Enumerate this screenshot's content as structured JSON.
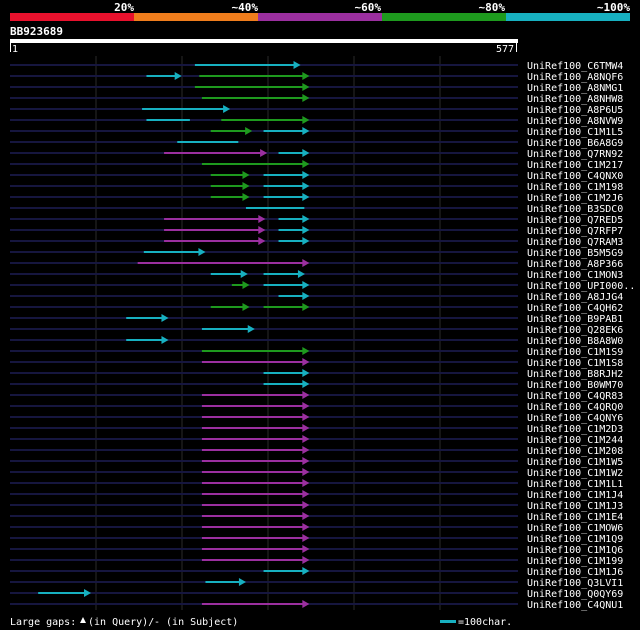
{
  "header": {
    "scale_labels": [
      "20%",
      "~40%",
      "~60%",
      "~80%",
      "~100%"
    ],
    "scale_colors": [
      "#e8112d",
      "#ef7d1c",
      "#9b2f9f",
      "#1e9a1e",
      "#17b0c0"
    ],
    "query_id": "BB923689",
    "query_start": "1",
    "query_end": "577"
  },
  "hits": [
    {
      "id": "UniRef100_C6TMW4",
      "segs": [
        {
          "s": 210,
          "e": 330,
          "c": 4,
          "a": 1
        }
      ]
    },
    {
      "id": "UniRef100_A8NQF6",
      "segs": [
        {
          "s": 155,
          "e": 195,
          "c": 4,
          "a": 1
        },
        {
          "s": 215,
          "e": 340,
          "c": 3,
          "a": 1
        }
      ]
    },
    {
      "id": "UniRef100_A8NMG1",
      "segs": [
        {
          "s": 210,
          "e": 340,
          "c": 3,
          "a": 1
        }
      ]
    },
    {
      "id": "UniRef100_A8NHW8",
      "segs": [
        {
          "s": 218,
          "e": 340,
          "c": 3,
          "a": 1
        }
      ]
    },
    {
      "id": "UniRef100_A8P6U5",
      "segs": [
        {
          "s": 150,
          "e": 250,
          "c": 4,
          "a": 1
        }
      ]
    },
    {
      "id": "UniRef100_A8NVW9",
      "segs": [
        {
          "s": 155,
          "e": 210,
          "c": 4,
          "a": 0
        },
        {
          "s": 240,
          "e": 340,
          "c": 3,
          "a": 1
        }
      ]
    },
    {
      "id": "UniRef100_C1M1L5",
      "segs": [
        {
          "s": 228,
          "e": 275,
          "c": 3,
          "a": 1
        },
        {
          "s": 288,
          "e": 340,
          "c": 4,
          "a": 1
        }
      ]
    },
    {
      "id": "UniRef100_B6A8G9",
      "segs": [
        {
          "s": 190,
          "e": 265,
          "c": 4,
          "a": 0
        }
      ]
    },
    {
      "id": "UniRef100_Q7RN92",
      "segs": [
        {
          "s": 175,
          "e": 292,
          "c": 2,
          "a": 1
        },
        {
          "s": 305,
          "e": 340,
          "c": 4,
          "a": 1
        }
      ]
    },
    {
      "id": "UniRef100_C1M217",
      "segs": [
        {
          "s": 218,
          "e": 340,
          "c": 3,
          "a": 1
        }
      ]
    },
    {
      "id": "UniRef100_C4QNX0",
      "segs": [
        {
          "s": 228,
          "e": 272,
          "c": 3,
          "a": 1
        },
        {
          "s": 288,
          "e": 340,
          "c": 4,
          "a": 1
        }
      ]
    },
    {
      "id": "UniRef100_C1M198",
      "segs": [
        {
          "s": 228,
          "e": 272,
          "c": 3,
          "a": 1
        },
        {
          "s": 288,
          "e": 340,
          "c": 4,
          "a": 1
        }
      ]
    },
    {
      "id": "UniRef100_C1M2J6",
      "segs": [
        {
          "s": 228,
          "e": 272,
          "c": 3,
          "a": 1
        },
        {
          "s": 288,
          "e": 340,
          "c": 4,
          "a": 1
        }
      ]
    },
    {
      "id": "UniRef100_B3SDC0",
      "segs": [
        {
          "s": 268,
          "e": 340,
          "c": 4,
          "a": 0
        }
      ]
    },
    {
      "id": "UniRef100_Q7RED5",
      "segs": [
        {
          "s": 175,
          "e": 290,
          "c": 2,
          "a": 1
        },
        {
          "s": 305,
          "e": 340,
          "c": 4,
          "a": 1
        }
      ]
    },
    {
      "id": "UniRef100_Q7RFP7",
      "segs": [
        {
          "s": 175,
          "e": 290,
          "c": 2,
          "a": 1
        },
        {
          "s": 305,
          "e": 340,
          "c": 4,
          "a": 1
        }
      ]
    },
    {
      "id": "UniRef100_Q7RAM3",
      "segs": [
        {
          "s": 175,
          "e": 290,
          "c": 2,
          "a": 1
        },
        {
          "s": 305,
          "e": 340,
          "c": 4,
          "a": 1
        }
      ]
    },
    {
      "id": "UniRef100_B5M5G9",
      "segs": [
        {
          "s": 152,
          "e": 222,
          "c": 4,
          "a": 1
        }
      ]
    },
    {
      "id": "UniRef100_A8P366",
      "segs": [
        {
          "s": 145,
          "e": 340,
          "c": 2,
          "a": 1
        }
      ]
    },
    {
      "id": "UniRef100_C1MON3",
      "segs": [
        {
          "s": 228,
          "e": 270,
          "c": 4,
          "a": 1
        },
        {
          "s": 288,
          "e": 335,
          "c": 4,
          "a": 1
        }
      ]
    },
    {
      "id": "UniRef100_UPI000..",
      "segs": [
        {
          "s": 252,
          "e": 272,
          "c": 3,
          "a": 1
        },
        {
          "s": 288,
          "e": 340,
          "c": 4,
          "a": 1
        }
      ]
    },
    {
      "id": "UniRef100_A8JJG4",
      "segs": [
        {
          "s": 305,
          "e": 340,
          "c": 4,
          "a": 1
        }
      ]
    },
    {
      "id": "UniRef100_C4QH62",
      "segs": [
        {
          "s": 228,
          "e": 272,
          "c": 3,
          "a": 1
        },
        {
          "s": 288,
          "e": 340,
          "c": 3,
          "a": 1
        }
      ]
    },
    {
      "id": "UniRef100_B9PAB1",
      "segs": [
        {
          "s": 132,
          "e": 180,
          "c": 4,
          "a": 1
        }
      ]
    },
    {
      "id": "UniRef100_Q28EK6",
      "segs": [
        {
          "s": 218,
          "e": 278,
          "c": 4,
          "a": 1
        }
      ]
    },
    {
      "id": "UniRef100_B8A8W0",
      "segs": [
        {
          "s": 132,
          "e": 180,
          "c": 4,
          "a": 1
        }
      ]
    },
    {
      "id": "UniRef100_C1M1S9",
      "segs": [
        {
          "s": 218,
          "e": 340,
          "c": 3,
          "a": 1
        }
      ]
    },
    {
      "id": "UniRef100_C1M1S8",
      "segs": [
        {
          "s": 218,
          "e": 340,
          "c": 2,
          "a": 1
        }
      ]
    },
    {
      "id": "UniRef100_B8RJH2",
      "segs": [
        {
          "s": 288,
          "e": 340,
          "c": 4,
          "a": 1
        }
      ]
    },
    {
      "id": "UniRef100_B0WM70",
      "segs": [
        {
          "s": 288,
          "e": 340,
          "c": 4,
          "a": 1
        }
      ]
    },
    {
      "id": "UniRef100_C4QR83",
      "segs": [
        {
          "s": 218,
          "e": 340,
          "c": 2,
          "a": 1
        }
      ]
    },
    {
      "id": "UniRef100_C4QRQ0",
      "segs": [
        {
          "s": 218,
          "e": 340,
          "c": 2,
          "a": 1
        }
      ]
    },
    {
      "id": "UniRef100_C4QNY6",
      "segs": [
        {
          "s": 218,
          "e": 340,
          "c": 2,
          "a": 1
        }
      ]
    },
    {
      "id": "UniRef100_C1M2D3",
      "segs": [
        {
          "s": 218,
          "e": 340,
          "c": 2,
          "a": 1
        }
      ]
    },
    {
      "id": "UniRef100_C1M244",
      "segs": [
        {
          "s": 218,
          "e": 340,
          "c": 2,
          "a": 1
        }
      ]
    },
    {
      "id": "UniRef100_C1M208",
      "segs": [
        {
          "s": 218,
          "e": 340,
          "c": 2,
          "a": 1
        }
      ]
    },
    {
      "id": "UniRef100_C1M1W5",
      "segs": [
        {
          "s": 218,
          "e": 340,
          "c": 2,
          "a": 1
        }
      ]
    },
    {
      "id": "UniRef100_C1M1W2",
      "segs": [
        {
          "s": 218,
          "e": 340,
          "c": 2,
          "a": 1
        }
      ]
    },
    {
      "id": "UniRef100_C1M1L1",
      "segs": [
        {
          "s": 218,
          "e": 340,
          "c": 2,
          "a": 1
        }
      ]
    },
    {
      "id": "UniRef100_C1M1J4",
      "segs": [
        {
          "s": 218,
          "e": 340,
          "c": 2,
          "a": 1
        }
      ]
    },
    {
      "id": "UniRef100_C1M1J3",
      "segs": [
        {
          "s": 218,
          "e": 340,
          "c": 2,
          "a": 1
        }
      ]
    },
    {
      "id": "UniRef100_C1M1E4",
      "segs": [
        {
          "s": 218,
          "e": 340,
          "c": 2,
          "a": 1
        }
      ]
    },
    {
      "id": "UniRef100_C1MOW6",
      "segs": [
        {
          "s": 218,
          "e": 340,
          "c": 2,
          "a": 1
        }
      ]
    },
    {
      "id": "UniRef100_C1M1Q9",
      "segs": [
        {
          "s": 218,
          "e": 340,
          "c": 2,
          "a": 1
        }
      ]
    },
    {
      "id": "UniRef100_C1M1Q6",
      "segs": [
        {
          "s": 218,
          "e": 340,
          "c": 2,
          "a": 1
        }
      ]
    },
    {
      "id": "UniRef100_C1M199",
      "segs": [
        {
          "s": 218,
          "e": 340,
          "c": 2,
          "a": 1
        }
      ]
    },
    {
      "id": "UniRef100_C1M1J6",
      "segs": [
        {
          "s": 288,
          "e": 340,
          "c": 4,
          "a": 1
        }
      ]
    },
    {
      "id": "UniRef100_Q3LVI1",
      "segs": [
        {
          "s": 222,
          "e": 268,
          "c": 4,
          "a": 1
        }
      ]
    },
    {
      "id": "UniRef100_Q0QY69",
      "segs": [
        {
          "s": 32,
          "e": 92,
          "c": 4,
          "a": 1
        }
      ]
    },
    {
      "id": "UniRef100_C4QNU1",
      "segs": [
        {
          "s": 218,
          "e": 340,
          "c": 2,
          "a": 1
        }
      ]
    }
  ],
  "footer": {
    "gaps_label": "Large gaps:",
    "gaps_query": "(in Query)/",
    "gaps_subject": "- (in Subject)",
    "scale_note": "=100char."
  }
}
